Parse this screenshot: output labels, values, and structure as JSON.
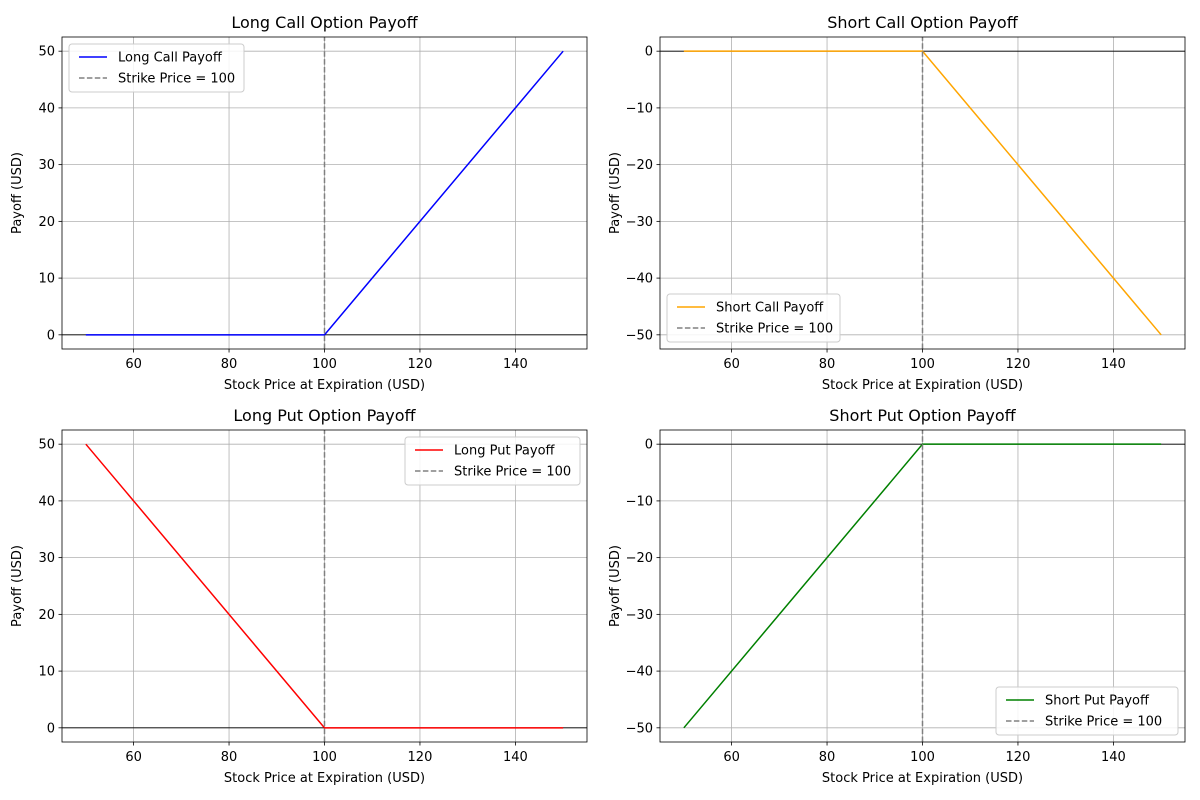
{
  "chart_data": [
    {
      "type": "line",
      "title": "Long Call Option Payoff",
      "xlabel": "Stock Price at Expiration (USD)",
      "ylabel": "Payoff (USD)",
      "xlim": [
        45,
        155
      ],
      "ylim": [
        -2.5,
        52.5
      ],
      "xticks": [
        60,
        80,
        100,
        120,
        140
      ],
      "yticks": [
        0,
        10,
        20,
        30,
        40,
        50
      ],
      "grid": true,
      "legend_position": "upper left",
      "strike": 100,
      "series": [
        {
          "name": "Long Call Payoff",
          "color": "#0000ff",
          "style": "solid",
          "x": [
            50,
            100,
            150
          ],
          "y": [
            0,
            0,
            50
          ]
        },
        {
          "name": "Strike Price = 100",
          "color": "#808080",
          "style": "dashed",
          "x": [
            100,
            100
          ],
          "y": [
            -2.5,
            52.5
          ]
        }
      ]
    },
    {
      "type": "line",
      "title": "Short Call Option Payoff",
      "xlabel": "Stock Price at Expiration (USD)",
      "ylabel": "Payoff (USD)",
      "xlim": [
        45,
        155
      ],
      "ylim": [
        -52.5,
        2.5
      ],
      "xticks": [
        60,
        80,
        100,
        120,
        140
      ],
      "yticks": [
        0,
        -10,
        -20,
        -30,
        -40,
        -50
      ],
      "grid": true,
      "legend_position": "lower left",
      "strike": 100,
      "series": [
        {
          "name": "Short Call Payoff",
          "color": "#ffa500",
          "style": "solid",
          "x": [
            50,
            100,
            150
          ],
          "y": [
            0,
            0,
            -50
          ]
        },
        {
          "name": "Strike Price = 100",
          "color": "#808080",
          "style": "dashed",
          "x": [
            100,
            100
          ],
          "y": [
            -52.5,
            2.5
          ]
        }
      ]
    },
    {
      "type": "line",
      "title": "Long Put Option Payoff",
      "xlabel": "Stock Price at Expiration (USD)",
      "ylabel": "Payoff (USD)",
      "xlim": [
        45,
        155
      ],
      "ylim": [
        -2.5,
        52.5
      ],
      "xticks": [
        60,
        80,
        100,
        120,
        140
      ],
      "yticks": [
        0,
        10,
        20,
        30,
        40,
        50
      ],
      "grid": true,
      "legend_position": "upper right",
      "strike": 100,
      "series": [
        {
          "name": "Long Put Payoff",
          "color": "#ff0000",
          "style": "solid",
          "x": [
            50,
            100,
            150
          ],
          "y": [
            50,
            0,
            0
          ]
        },
        {
          "name": "Strike Price = 100",
          "color": "#808080",
          "style": "dashed",
          "x": [
            100,
            100
          ],
          "y": [
            -2.5,
            52.5
          ]
        }
      ]
    },
    {
      "type": "line",
      "title": "Short Put Option Payoff",
      "xlabel": "Stock Price at Expiration (USD)",
      "ylabel": "Payoff (USD)",
      "xlim": [
        45,
        155
      ],
      "ylim": [
        -52.5,
        2.5
      ],
      "xticks": [
        60,
        80,
        100,
        120,
        140
      ],
      "yticks": [
        0,
        -10,
        -20,
        -30,
        -40,
        -50
      ],
      "grid": true,
      "legend_position": "lower right",
      "strike": 100,
      "series": [
        {
          "name": "Short Put Payoff",
          "color": "#008000",
          "style": "solid",
          "x": [
            50,
            100,
            150
          ],
          "y": [
            -50,
            0,
            0
          ]
        },
        {
          "name": "Strike Price = 100",
          "color": "#808080",
          "style": "dashed",
          "x": [
            100,
            100
          ],
          "y": [
            -52.5,
            2.5
          ]
        }
      ]
    }
  ]
}
